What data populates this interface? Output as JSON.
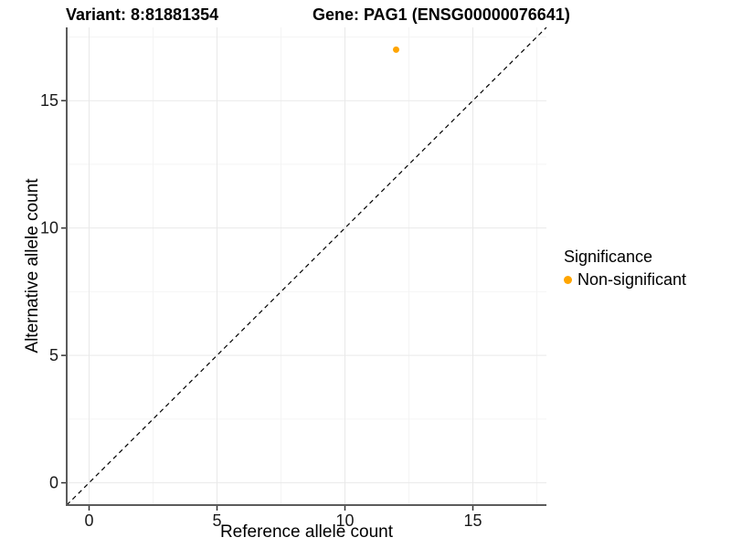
{
  "titles": {
    "variant": "Variant: 8:81881354",
    "gene": "Gene: PAG1 (ENSG00000076641)"
  },
  "chart_data": {
    "type": "scatter",
    "xlabel": "Reference allele count",
    "ylabel": "Alternative allele count",
    "xlim": [
      -0.875,
      17.875
    ],
    "ylim": [
      -0.875,
      17.875
    ],
    "x_ticks": [
      0,
      5,
      10,
      15
    ],
    "y_ticks": [
      0,
      5,
      10,
      15
    ],
    "minor_gridlines": [
      2.5,
      7.5,
      12.5,
      17.5
    ],
    "grid": true,
    "points": [
      {
        "x": 12,
        "y": 17,
        "series": "Non-significant"
      }
    ],
    "identity_line": {
      "type": "y=x",
      "style": "dashed",
      "color": "#000000"
    },
    "legend": {
      "title": "Significance",
      "position": "right",
      "entries": [
        {
          "label": "Non-significant",
          "color": "#FFA500"
        }
      ]
    },
    "colors": {
      "point": "#FFA500",
      "grid_major": "#E9E9E9",
      "grid_minor": "#F4F4F4",
      "axis_line": "#5B5B5B",
      "tick_mark": "#333333",
      "tick_text": "#1A1A1A"
    }
  }
}
